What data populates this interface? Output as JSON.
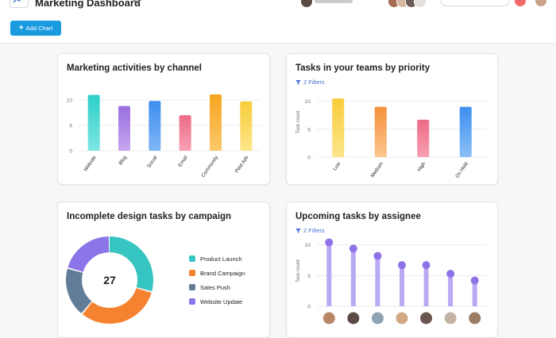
{
  "header": {
    "title": "Marketing Dashboard"
  },
  "toolbar": {
    "add_chart_label": "Add Chart"
  },
  "cards": {
    "channel": {
      "title": "Marketing activities by channel"
    },
    "priority": {
      "title": "Tasks in your teams by priority",
      "filter": "2 Filters"
    },
    "campaign": {
      "title": "Incomplete design tasks by campaign"
    },
    "assignee": {
      "title": "Upcoming tasks by assignee",
      "filter": "2 Filters"
    }
  },
  "chart_data": [
    {
      "type": "bar",
      "categories": [
        "Website",
        "Blog",
        "Social",
        "Email",
        "Community",
        "Paid Ads"
      ],
      "values": [
        11,
        8.8,
        9.8,
        7,
        11.1,
        9.7
      ],
      "colors": [
        [
          "#7ee6e2",
          "#2fcfc9"
        ],
        [
          "#c6a5ef",
          "#9b6ee0"
        ],
        [
          "#7fb6f5",
          "#3d8ef0"
        ],
        [
          "#f7a0b3",
          "#ee6a86"
        ],
        [
          "#fbc86b",
          "#f6a51f"
        ],
        [
          "#fde58a",
          "#f7cd3a"
        ]
      ],
      "yticks": [
        0,
        5,
        10
      ],
      "ylim": [
        0,
        12.5
      ]
    },
    {
      "type": "bar",
      "categories": [
        "Low",
        "Medium",
        "High",
        "On Hold"
      ],
      "values": [
        10.5,
        9,
        6.7,
        9
      ],
      "colors": [
        [
          "#fde58a",
          "#f7cd3a"
        ],
        [
          "#fbc78e",
          "#f58f3b"
        ],
        [
          "#f7a0b3",
          "#ee6a86"
        ],
        [
          "#8cc0f7",
          "#3d8ef0"
        ]
      ],
      "yticks": [
        0,
        5,
        10
      ],
      "ylabel": "Task count",
      "ylim": [
        0,
        12.5
      ]
    },
    {
      "type": "pie",
      "center_label": "27",
      "series": [
        {
          "name": "Product Launch",
          "value": 8,
          "color": "#37c5c1"
        },
        {
          "name": "Brand Campaign",
          "value": 8.5,
          "color": "#f5822f"
        },
        {
          "name": "Sales Push",
          "value": 5,
          "color": "#627d98"
        },
        {
          "name": "Website Update",
          "value": 5.5,
          "color": "#8c75e8"
        }
      ]
    },
    {
      "type": "bar",
      "categories": [
        "",
        "",
        "",
        "",
        "",
        "",
        ""
      ],
      "values": [
        10.4,
        9.4,
        8.2,
        6.7,
        6.7,
        5.3,
        4.2
      ],
      "yticks": [
        0,
        5,
        10
      ],
      "ylabel": "Task count",
      "ylim": [
        0,
        11.5
      ],
      "color": "#b9a8f2",
      "dot_color": "#8f73e6"
    }
  ]
}
